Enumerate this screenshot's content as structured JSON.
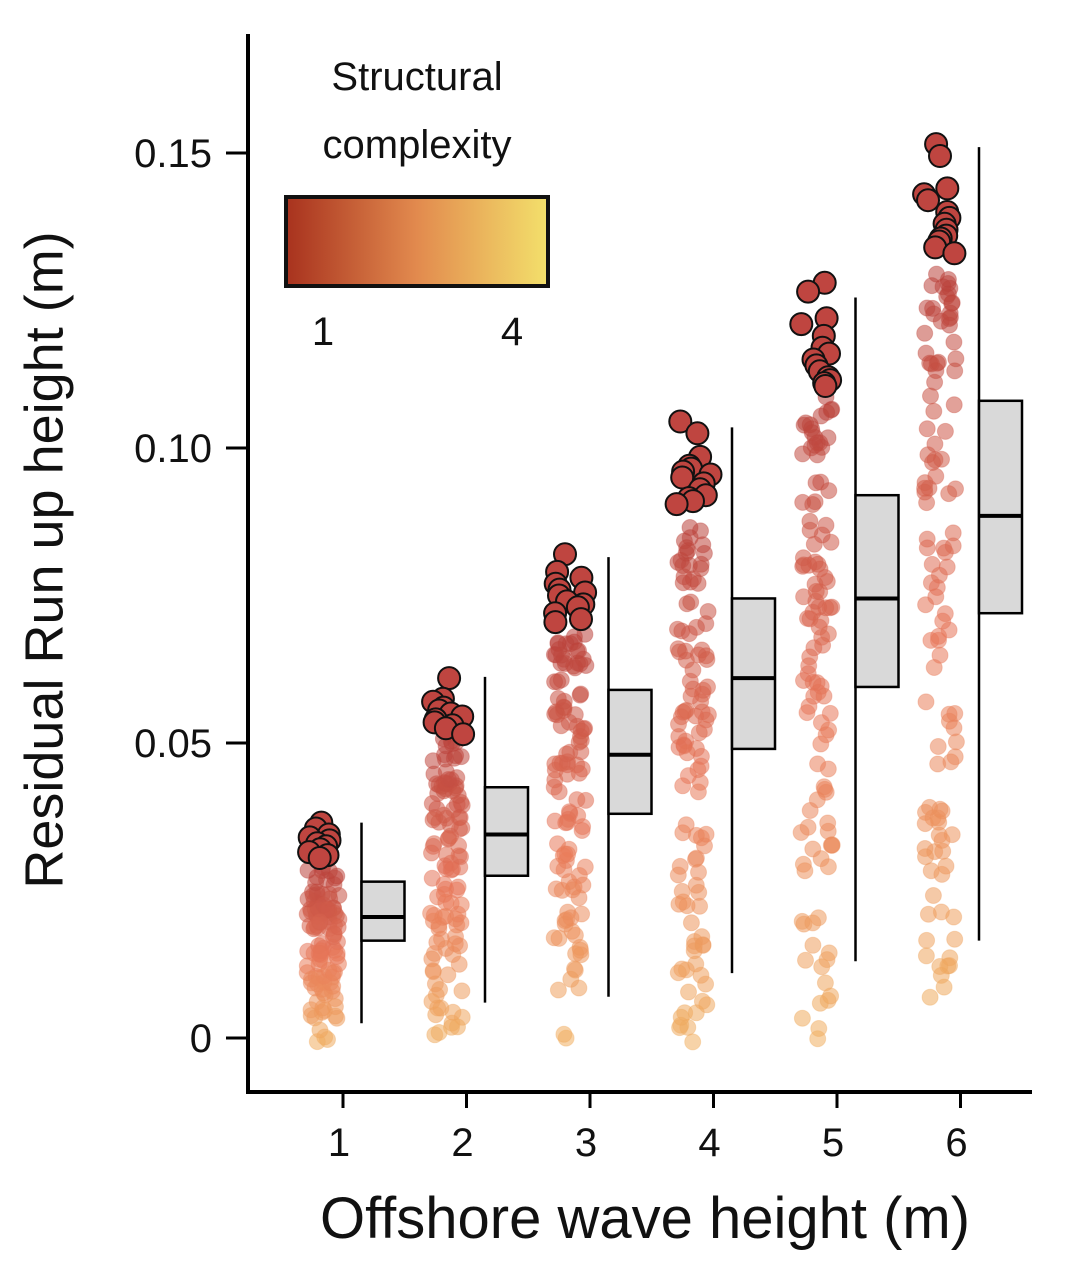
{
  "chart_data": {
    "type": "jitter-boxplot",
    "xlabel": "Offshore wave height (m)",
    "ylabel": "Residual Run up height (m)",
    "ylim": [
      -0.009,
      0.17
    ],
    "yticks": [
      0,
      0.05,
      0.1,
      0.15
    ],
    "ytick_labels": [
      "0",
      "0.05",
      "0.10",
      "0.15"
    ],
    "categories": [
      "1",
      "2",
      "3",
      "4",
      "5",
      "6"
    ],
    "boxes": [
      {
        "category": "1",
        "whisker_low": 0.0025,
        "q1": 0.0165,
        "median": 0.0205,
        "q3": 0.0265,
        "whisker_high": 0.0365
      },
      {
        "category": "2",
        "whisker_low": 0.006,
        "q1": 0.0275,
        "median": 0.0345,
        "q3": 0.0425,
        "whisker_high": 0.0612
      },
      {
        "category": "3",
        "whisker_low": 0.007,
        "q1": 0.038,
        "median": 0.048,
        "q3": 0.059,
        "whisker_high": 0.0815
      },
      {
        "category": "4",
        "whisker_low": 0.011,
        "q1": 0.049,
        "median": 0.061,
        "q3": 0.0745,
        "whisker_high": 0.1035
      },
      {
        "category": "5",
        "whisker_low": 0.013,
        "q1": 0.0595,
        "median": 0.0745,
        "q3": 0.092,
        "whisker_high": 0.1255
      },
      {
        "category": "6",
        "whisker_low": 0.0165,
        "q1": 0.072,
        "median": 0.0885,
        "q3": 0.108,
        "whisker_high": 0.151
      }
    ],
    "points": [
      {
        "category": "1",
        "min": -0.0015,
        "max": 0.029
      },
      {
        "category": "2",
        "min": -0.0015,
        "max": 0.051
      },
      {
        "category": "3",
        "min": -0.0015,
        "max": 0.069
      },
      {
        "category": "4",
        "min": -0.0015,
        "max": 0.088
      },
      {
        "category": "5",
        "min": -0.0015,
        "max": 0.109
      },
      {
        "category": "6",
        "min": 0.0015,
        "max": 0.131
      }
    ],
    "outliers": [
      {
        "category": "1",
        "values": [
          0.0365,
          0.0355,
          0.0345,
          0.034,
          0.0335,
          0.033,
          0.0325,
          0.032,
          0.0315,
          0.031,
          0.0305
        ]
      },
      {
        "category": "2",
        "values": [
          0.061,
          0.0575,
          0.057,
          0.056,
          0.0555,
          0.055,
          0.0545,
          0.054,
          0.0535,
          0.053,
          0.0525,
          0.0515
        ]
      },
      {
        "category": "3",
        "values": [
          0.082,
          0.079,
          0.078,
          0.077,
          0.076,
          0.0755,
          0.075,
          0.074,
          0.0735,
          0.073,
          0.072,
          0.071,
          0.0705
        ]
      },
      {
        "category": "4",
        "values": [
          0.1045,
          0.1025,
          0.0985,
          0.097,
          0.0965,
          0.096,
          0.0955,
          0.095,
          0.094,
          0.093,
          0.092,
          0.0915,
          0.091,
          0.0905
        ]
      },
      {
        "category": "5",
        "values": [
          0.128,
          0.1265,
          0.122,
          0.121,
          0.119,
          0.117,
          0.116,
          0.115,
          0.114,
          0.113,
          0.112,
          0.1115,
          0.111,
          0.1105
        ]
      },
      {
        "category": "6",
        "values": [
          0.1515,
          0.1495,
          0.144,
          0.143,
          0.142,
          0.14,
          0.139,
          0.138,
          0.137,
          0.136,
          0.1355,
          0.135,
          0.134,
          0.133
        ]
      }
    ],
    "legend": {
      "title_line1": "Structural",
      "title_line2": "complexity",
      "min_label": "1",
      "max_label": "4",
      "gradient_dark": "#a8321e",
      "gradient_mid": "#e28a4e",
      "gradient_light": "#f3e06b",
      "position": "top-left"
    },
    "colors": {
      "point_high": "#b8403a",
      "point_mid": "#e8785a",
      "point_low": "#f0b060",
      "outlier_fill": "#bf4540",
      "box_fill": "#d9d9d9",
      "axis": "#000000"
    }
  }
}
